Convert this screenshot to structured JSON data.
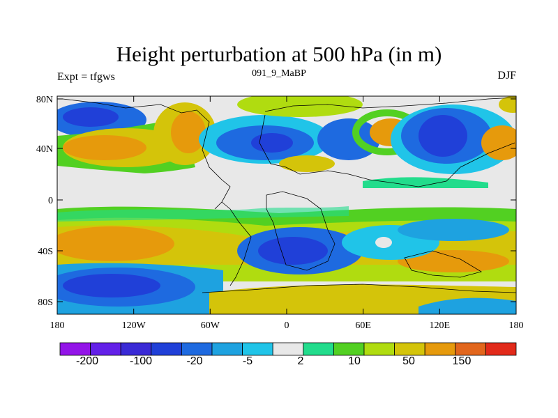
{
  "title": "Height perturbation at 500 hPa (in m)",
  "left_string": "Expt = tfgws",
  "center_string": "091_9_MaBP",
  "right_string": "DJF",
  "lat_ticks": [
    "80N",
    "40N",
    "0",
    "40S",
    "80S"
  ],
  "lon_ticks": [
    "180",
    "120W",
    "60W",
    "0",
    "60E",
    "120E",
    "180"
  ],
  "colorbar": {
    "colors": [
      "#9314e8",
      "#6320e8",
      "#3a2ad6",
      "#2040d8",
      "#1e6ae0",
      "#1ea2e0",
      "#20c4e8",
      "#e8e8e8",
      "#22dc8c",
      "#52d022",
      "#b0dc10",
      "#d4c40a",
      "#e69a0c",
      "#e2661c",
      "#e22a1a"
    ],
    "labels": [
      "-200",
      "-100",
      "-20",
      "-5",
      "2",
      "10",
      "50",
      "150"
    ]
  }
}
